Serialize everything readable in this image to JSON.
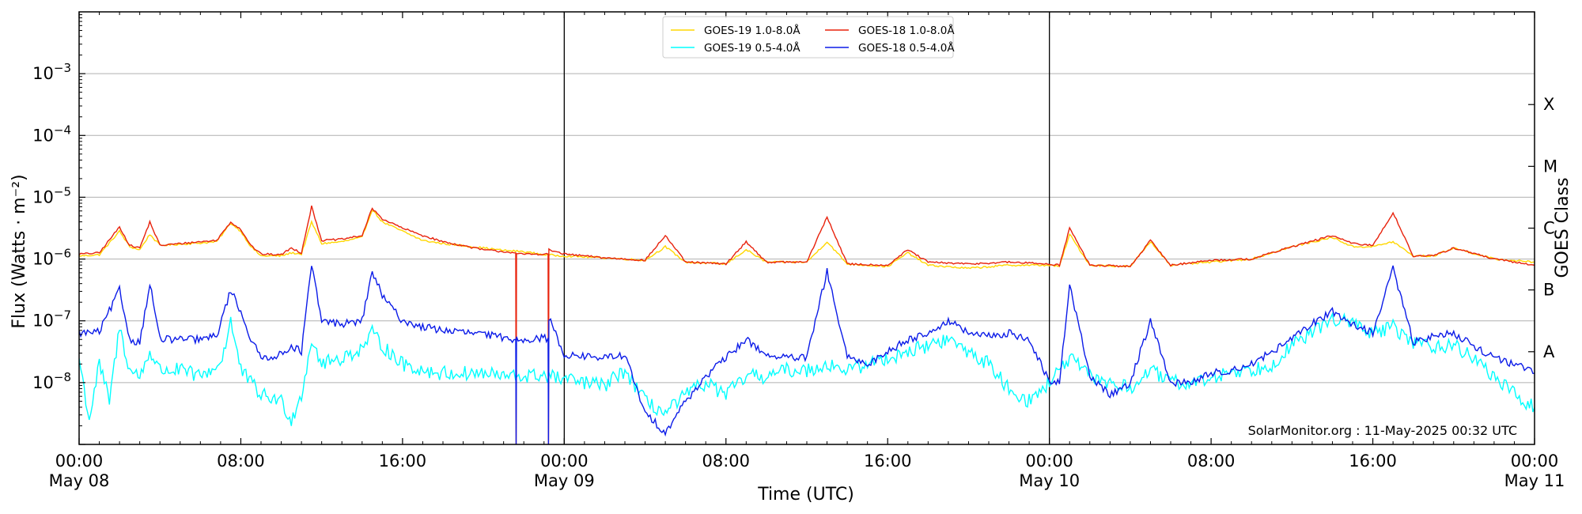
{
  "chart_data": {
    "type": "line",
    "title": "",
    "xlabel": "Time (UTC)",
    "ylabel": "Flux (Watts · m⁻²)",
    "y2label": "GOES Class",
    "yscale": "log",
    "x_units": "hours since 00:00 May 08",
    "xlim": [
      0,
      72
    ],
    "ylim": [
      1e-09,
      0.01
    ],
    "grid": "horizontal at decades",
    "legend_position": "top-center",
    "x_ticks": [
      {
        "x": 0,
        "label": "00:00",
        "sublabel": "May 08"
      },
      {
        "x": 8,
        "label": "08:00",
        "sublabel": ""
      },
      {
        "x": 16,
        "label": "16:00",
        "sublabel": ""
      },
      {
        "x": 24,
        "label": "00:00",
        "sublabel": "May 09"
      },
      {
        "x": 32,
        "label": "08:00",
        "sublabel": ""
      },
      {
        "x": 40,
        "label": "16:00",
        "sublabel": ""
      },
      {
        "x": 48,
        "label": "00:00",
        "sublabel": "May 10"
      },
      {
        "x": 56,
        "label": "08:00",
        "sublabel": ""
      },
      {
        "x": 64,
        "label": "16:00",
        "sublabel": ""
      },
      {
        "x": 72,
        "label": "00:00",
        "sublabel": "May 11"
      }
    ],
    "y_ticks": [
      {
        "exp": -8,
        "base": "10",
        "power": "−8"
      },
      {
        "exp": -7,
        "base": "10",
        "power": "−7"
      },
      {
        "exp": -6,
        "base": "10",
        "power": "−6"
      },
      {
        "exp": -5,
        "base": "10",
        "power": "−5"
      },
      {
        "exp": -4,
        "base": "10",
        "power": "−4"
      },
      {
        "exp": -3,
        "base": "10",
        "power": "−3"
      }
    ],
    "goes_classes": [
      {
        "label": "A",
        "exp": -7.5
      },
      {
        "label": "B",
        "exp": -6.5
      },
      {
        "label": "C",
        "exp": -5.5
      },
      {
        "label": "M",
        "exp": -4.5
      },
      {
        "label": "X",
        "exp": -3.5
      }
    ],
    "day_boundaries": [
      24,
      48
    ],
    "credit": "SolarMonitor.org : 11-May-2025 00:32 UTC",
    "series": [
      {
        "name": "GOES-19 1.0-8.0Å",
        "color": "#ffd700",
        "points": [
          [
            0,
            -5.95
          ],
          [
            1,
            -5.93
          ],
          [
            2,
            -5.55
          ],
          [
            2.5,
            -5.8
          ],
          [
            3,
            -5.85
          ],
          [
            3.5,
            -5.6
          ],
          [
            4,
            -5.78
          ],
          [
            6,
            -5.74
          ],
          [
            6.8,
            -5.72
          ],
          [
            7.5,
            -5.42
          ],
          [
            8,
            -5.55
          ],
          [
            8.5,
            -5.8
          ],
          [
            9,
            -5.95
          ],
          [
            10,
            -5.95
          ],
          [
            10.5,
            -5.9
          ],
          [
            11,
            -5.92
          ],
          [
            11.5,
            -5.4
          ],
          [
            12,
            -5.75
          ],
          [
            13,
            -5.72
          ],
          [
            14,
            -5.65
          ],
          [
            14.5,
            -5.2
          ],
          [
            15,
            -5.4
          ],
          [
            16,
            -5.55
          ],
          [
            17,
            -5.7
          ],
          [
            18,
            -5.75
          ],
          [
            20,
            -5.82
          ],
          [
            21,
            -5.86
          ],
          [
            22,
            -5.88
          ],
          [
            23,
            -5.93
          ],
          [
            24,
            -5.95
          ],
          [
            26,
            -5.98
          ],
          [
            28,
            -6.02
          ],
          [
            29,
            -5.8
          ],
          [
            30,
            -6.05
          ],
          [
            32,
            -6.08
          ],
          [
            33,
            -5.85
          ],
          [
            34,
            -6.05
          ],
          [
            36,
            -6.05
          ],
          [
            37,
            -5.72
          ],
          [
            38,
            -6.08
          ],
          [
            40,
            -6.12
          ],
          [
            41,
            -5.9
          ],
          [
            42,
            -6.1
          ],
          [
            44,
            -6.15
          ],
          [
            46,
            -6.1
          ],
          [
            48,
            -6.1
          ],
          [
            48.5,
            -6.12
          ],
          [
            49,
            -5.6
          ],
          [
            50,
            -6.1
          ],
          [
            52,
            -6.12
          ],
          [
            53,
            -5.72
          ],
          [
            54,
            -6.1
          ],
          [
            56,
            -6.05
          ],
          [
            58,
            -6.0
          ],
          [
            60,
            -5.8
          ],
          [
            62,
            -5.65
          ],
          [
            63,
            -5.8
          ],
          [
            64,
            -5.8
          ],
          [
            65,
            -5.72
          ],
          [
            66,
            -5.95
          ],
          [
            67,
            -5.95
          ],
          [
            68,
            -5.82
          ],
          [
            70,
            -6.0
          ],
          [
            72,
            -6.05
          ]
        ]
      },
      {
        "name": "GOES-18 1.0-8.0Å",
        "color": "#e8220c",
        "points": [
          [
            0,
            -5.92
          ],
          [
            1,
            -5.9
          ],
          [
            2,
            -5.48
          ],
          [
            2.5,
            -5.78
          ],
          [
            3,
            -5.82
          ],
          [
            3.5,
            -5.4
          ],
          [
            4,
            -5.78
          ],
          [
            6,
            -5.72
          ],
          [
            6.8,
            -5.7
          ],
          [
            7.5,
            -5.4
          ],
          [
            8,
            -5.52
          ],
          [
            8.5,
            -5.78
          ],
          [
            9,
            -5.92
          ],
          [
            10,
            -5.93
          ],
          [
            10.5,
            -5.82
          ],
          [
            11,
            -5.9
          ],
          [
            11.5,
            -5.15
          ],
          [
            12,
            -5.7
          ],
          [
            13,
            -5.68
          ],
          [
            14,
            -5.62
          ],
          [
            14.5,
            -5.18
          ],
          [
            15,
            -5.35
          ],
          [
            16,
            -5.5
          ],
          [
            17,
            -5.62
          ],
          [
            18,
            -5.72
          ],
          [
            20,
            -5.85
          ],
          [
            21,
            -5.88
          ],
          [
            21.6,
            -5.9
          ],
          [
            21.62,
            -9
          ],
          [
            21.64,
            -5.92
          ],
          [
            23.2,
            -5.92
          ],
          [
            23.22,
            -9
          ],
          [
            23.24,
            -5.85
          ],
          [
            24,
            -5.92
          ],
          [
            26,
            -5.98
          ],
          [
            28,
            -6.02
          ],
          [
            29,
            -5.62
          ],
          [
            30,
            -6.05
          ],
          [
            32,
            -6.08
          ],
          [
            33,
            -5.72
          ],
          [
            34,
            -6.05
          ],
          [
            36,
            -6.05
          ],
          [
            37,
            -5.32
          ],
          [
            38,
            -6.08
          ],
          [
            40,
            -6.1
          ],
          [
            41,
            -5.85
          ],
          [
            42,
            -6.05
          ],
          [
            44,
            -6.08
          ],
          [
            46,
            -6.05
          ],
          [
            48,
            -6.08
          ],
          [
            48.5,
            -6.1
          ],
          [
            49,
            -5.5
          ],
          [
            50,
            -6.1
          ],
          [
            52,
            -6.12
          ],
          [
            53,
            -5.7
          ],
          [
            54,
            -6.1
          ],
          [
            56,
            -6.02
          ],
          [
            58,
            -6.0
          ],
          [
            60,
            -5.8
          ],
          [
            62,
            -5.62
          ],
          [
            63,
            -5.75
          ],
          [
            64,
            -5.78
          ],
          [
            65,
            -5.25
          ],
          [
            66,
            -5.95
          ],
          [
            67,
            -5.95
          ],
          [
            68,
            -5.82
          ],
          [
            70,
            -6.0
          ],
          [
            72,
            -6.1
          ]
        ]
      },
      {
        "name": "GOES-19 0.5-4.0Å",
        "color": "#00ffff",
        "points": [
          [
            0,
            -7.6
          ],
          [
            0.5,
            -8.6
          ],
          [
            1,
            -7.7
          ],
          [
            1.5,
            -8.3
          ],
          [
            2,
            -7.1
          ],
          [
            2.5,
            -7.8
          ],
          [
            3,
            -7.9
          ],
          [
            3.5,
            -7.5
          ],
          [
            4,
            -7.8
          ],
          [
            5,
            -7.8
          ],
          [
            6,
            -7.9
          ],
          [
            7,
            -7.7
          ],
          [
            7.5,
            -7.0
          ],
          [
            8,
            -7.8
          ],
          [
            9,
            -8.2
          ],
          [
            10,
            -8.3
          ],
          [
            10.5,
            -8.6
          ],
          [
            11,
            -8.2
          ],
          [
            11.5,
            -7.3
          ],
          [
            12,
            -7.7
          ],
          [
            13,
            -7.6
          ],
          [
            14,
            -7.45
          ],
          [
            14.5,
            -7.2
          ],
          [
            15,
            -7.4
          ],
          [
            16,
            -7.7
          ],
          [
            17,
            -7.8
          ],
          [
            18,
            -7.85
          ],
          [
            20,
            -7.85
          ],
          [
            21,
            -7.9
          ],
          [
            22,
            -7.9
          ],
          [
            23,
            -7.88
          ],
          [
            24,
            -7.95
          ],
          [
            25,
            -8.0
          ],
          [
            26,
            -8.05
          ],
          [
            27,
            -7.8
          ],
          [
            28,
            -8.3
          ],
          [
            29,
            -8.5
          ],
          [
            30,
            -8.2
          ],
          [
            31,
            -8.0
          ],
          [
            32,
            -8.2
          ],
          [
            33,
            -7.9
          ],
          [
            34,
            -7.9
          ],
          [
            35,
            -7.8
          ],
          [
            36,
            -7.8
          ],
          [
            37,
            -7.7
          ],
          [
            38,
            -7.8
          ],
          [
            39,
            -7.7
          ],
          [
            40,
            -7.6
          ],
          [
            41,
            -7.5
          ],
          [
            42,
            -7.4
          ],
          [
            43,
            -7.3
          ],
          [
            44,
            -7.5
          ],
          [
            45,
            -7.7
          ],
          [
            46,
            -8.1
          ],
          [
            47,
            -8.3
          ],
          [
            48,
            -8.0
          ],
          [
            49,
            -7.6
          ],
          [
            50,
            -7.9
          ],
          [
            51,
            -8.0
          ],
          [
            52,
            -8.1
          ],
          [
            53,
            -7.8
          ],
          [
            54,
            -8.0
          ],
          [
            55,
            -8.0
          ],
          [
            56,
            -7.95
          ],
          [
            57,
            -7.8
          ],
          [
            58,
            -7.8
          ],
          [
            59,
            -7.7
          ],
          [
            60,
            -7.4
          ],
          [
            61,
            -7.2
          ],
          [
            62,
            -6.95
          ],
          [
            63,
            -7.05
          ],
          [
            64,
            -7.2
          ],
          [
            65,
            -7.1
          ],
          [
            66,
            -7.35
          ],
          [
            67,
            -7.4
          ],
          [
            68,
            -7.4
          ],
          [
            69,
            -7.6
          ],
          [
            70,
            -7.9
          ],
          [
            71,
            -8.2
          ],
          [
            72,
            -8.4
          ]
        ]
      },
      {
        "name": "GOES-18 0.5-4.0Å",
        "color": "#0b1be8",
        "points": [
          [
            0,
            -7.2
          ],
          [
            1,
            -7.18
          ],
          [
            2,
            -6.5
          ],
          [
            2.5,
            -7.3
          ],
          [
            3,
            -7.35
          ],
          [
            3.5,
            -6.4
          ],
          [
            4,
            -7.3
          ],
          [
            6,
            -7.3
          ],
          [
            6.8,
            -7.25
          ],
          [
            7.5,
            -6.5
          ],
          [
            8,
            -6.85
          ],
          [
            8.5,
            -7.3
          ],
          [
            9,
            -7.6
          ],
          [
            10,
            -7.55
          ],
          [
            10.5,
            -7.4
          ],
          [
            11,
            -7.5
          ],
          [
            11.5,
            -6.1
          ],
          [
            12,
            -7.0
          ],
          [
            13,
            -7.05
          ],
          [
            14,
            -7.0
          ],
          [
            14.5,
            -6.2
          ],
          [
            15,
            -6.6
          ],
          [
            16,
            -7.0
          ],
          [
            17,
            -7.1
          ],
          [
            18,
            -7.15
          ],
          [
            20,
            -7.22
          ],
          [
            21.6,
            -7.3
          ],
          [
            21.62,
            -9
          ],
          [
            21.64,
            -7.3
          ],
          [
            23.2,
            -7.28
          ],
          [
            23.22,
            -9
          ],
          [
            23.24,
            -6.95
          ],
          [
            24,
            -7.55
          ],
          [
            26,
            -7.6
          ],
          [
            27,
            -7.55
          ],
          [
            28,
            -8.5
          ],
          [
            29,
            -8.8
          ],
          [
            30,
            -8.3
          ],
          [
            31,
            -7.9
          ],
          [
            32,
            -7.6
          ],
          [
            33,
            -7.3
          ],
          [
            34,
            -7.55
          ],
          [
            35,
            -7.6
          ],
          [
            36,
            -7.6
          ],
          [
            37,
            -6.2
          ],
          [
            38,
            -7.6
          ],
          [
            39,
            -7.7
          ],
          [
            40,
            -7.5
          ],
          [
            41,
            -7.3
          ],
          [
            42,
            -7.2
          ],
          [
            43,
            -7.0
          ],
          [
            44,
            -7.2
          ],
          [
            45,
            -7.25
          ],
          [
            46,
            -7.2
          ],
          [
            47,
            -7.3
          ],
          [
            48,
            -8.0
          ],
          [
            48.5,
            -8.0
          ],
          [
            49,
            -6.4
          ],
          [
            50,
            -7.9
          ],
          [
            51,
            -8.2
          ],
          [
            52,
            -8.0
          ],
          [
            53,
            -7.0
          ],
          [
            54,
            -8.0
          ],
          [
            55,
            -8.0
          ],
          [
            56,
            -7.85
          ],
          [
            57,
            -7.8
          ],
          [
            58,
            -7.7
          ],
          [
            59,
            -7.5
          ],
          [
            60,
            -7.3
          ],
          [
            61,
            -7.05
          ],
          [
            62,
            -6.85
          ],
          [
            63,
            -7.05
          ],
          [
            64,
            -7.2
          ],
          [
            65,
            -6.15
          ],
          [
            66,
            -7.35
          ],
          [
            67,
            -7.25
          ],
          [
            68,
            -7.2
          ],
          [
            69,
            -7.4
          ],
          [
            70,
            -7.6
          ],
          [
            71,
            -7.7
          ],
          [
            72,
            -7.85
          ]
        ]
      }
    ]
  }
}
